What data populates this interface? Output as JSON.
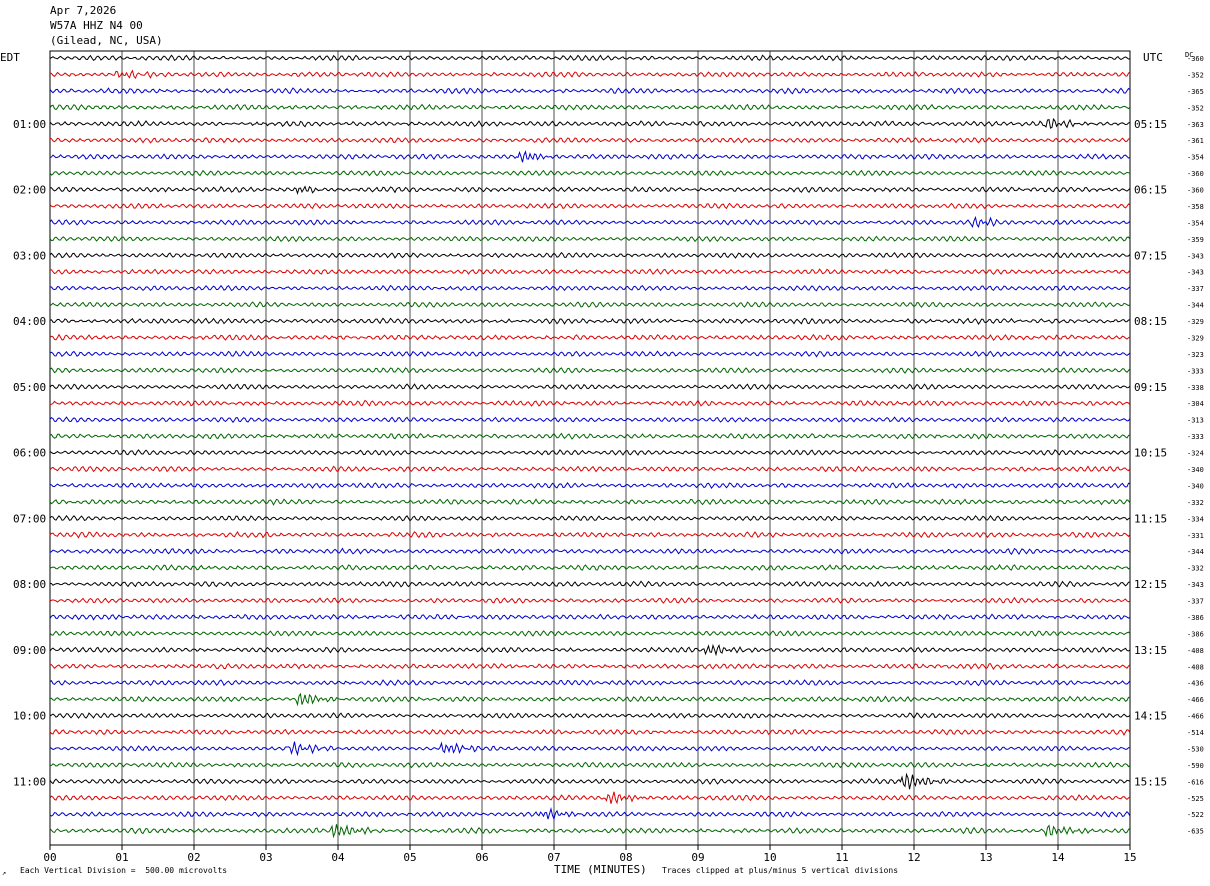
{
  "header": {
    "date": "Apr 7,2026",
    "station": "W57A HHZ N4 00",
    "location": "(Gilead, NC, USA)"
  },
  "footer": {
    "scale_note": "Each Vertical Division =  500.00 microvolts",
    "xlabel": "TIME (MINUTES)",
    "clip_note": "Traces clipped at plus/minus 5 vertical divisions",
    "corner_mark": "↗"
  },
  "chart_data": {
    "type": "line",
    "title": "",
    "xlabel": "TIME (MINUTES)",
    "x_ticks": [
      "00",
      "01",
      "02",
      "03",
      "04",
      "05",
      "06",
      "07",
      "08",
      "09",
      "10",
      "11",
      "12",
      "13",
      "14",
      "15"
    ],
    "xlim": [
      0,
      15
    ],
    "grid": "vertical lines at each minute",
    "left_axis_label": "EDT",
    "right_axis_label": "UTC",
    "dc_label": "DC",
    "left_hour_labels": [
      "01:00",
      "02:00",
      "03:00",
      "04:00",
      "05:00",
      "06:00",
      "07:00",
      "08:00",
      "09:00",
      "10:00",
      "11:00"
    ],
    "right_hour_labels": [
      "05:15",
      "06:15",
      "07:15",
      "08:15",
      "09:15",
      "10:15",
      "11:15",
      "12:15",
      "13:15",
      "14:15",
      "15:15"
    ],
    "hour_label_first_row": 4,
    "hour_label_every": 4,
    "trace_colors": [
      "#000000",
      "#dd0000",
      "#0000cc",
      "#006600"
    ],
    "dc_offsets": [
      -360,
      -352,
      -365,
      -352,
      -363,
      -361,
      -354,
      -360,
      -360,
      -358,
      -354,
      -359,
      -343,
      -343,
      -337,
      -344,
      -329,
      -329,
      -323,
      -333,
      -338,
      -304,
      -313,
      -333,
      -324,
      -340,
      -340,
      -332,
      -334,
      -331,
      -344,
      -332,
      -343,
      -337,
      -386,
      -386,
      -408,
      -408,
      -436,
      -466,
      -466,
      -514,
      -530,
      -590,
      -616,
      -525,
      -522,
      -635
    ],
    "events": [
      {
        "row": 1,
        "x": 1.0,
        "amp": 1.2
      },
      {
        "row": 4,
        "x": 13.9,
        "amp": 1.6
      },
      {
        "row": 6,
        "x": 6.6,
        "amp": 1.6
      },
      {
        "row": 8,
        "x": 3.5,
        "amp": 1.2
      },
      {
        "row": 10,
        "x": 12.9,
        "amp": 1.3
      },
      {
        "row": 36,
        "x": 9.2,
        "amp": 1.9
      },
      {
        "row": 39,
        "x": 3.5,
        "amp": 2.2
      },
      {
        "row": 42,
        "x": 3.4,
        "amp": 1.8
      },
      {
        "row": 42,
        "x": 5.5,
        "amp": 1.8
      },
      {
        "row": 44,
        "x": 11.9,
        "amp": 2.6
      },
      {
        "row": 45,
        "x": 7.8,
        "amp": 2.0
      },
      {
        "row": 46,
        "x": 6.9,
        "amp": 1.6
      },
      {
        "row": 47,
        "x": 4.0,
        "amp": 2.2
      },
      {
        "row": 47,
        "x": 13.9,
        "amp": 1.9
      }
    ]
  }
}
